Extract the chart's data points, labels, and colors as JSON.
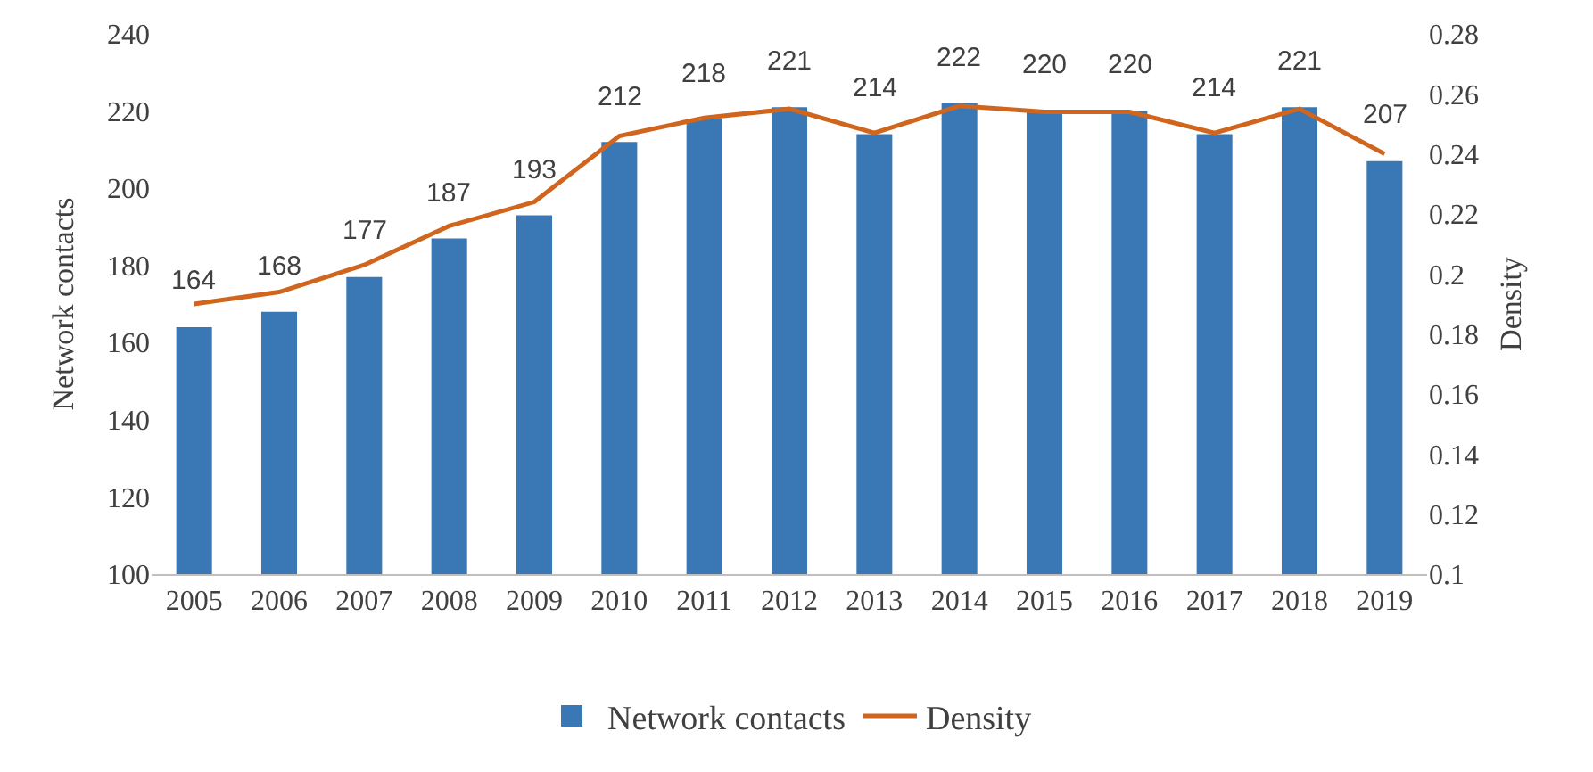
{
  "chart_data": {
    "type": "bar",
    "ylabel": "Network contacts",
    "y2label": "Density",
    "categories": [
      "2005",
      "2006",
      "2007",
      "2008",
      "2009",
      "2010",
      "2011",
      "2012",
      "2013",
      "2014",
      "2015",
      "2016",
      "2017",
      "2018",
      "2019"
    ],
    "series": [
      {
        "name": "Network contacts",
        "color": "#3a78b5",
        "values": [
          164,
          168,
          177,
          187,
          193,
          212,
          218,
          221,
          214,
          222,
          220,
          220,
          214,
          221,
          207
        ],
        "value_labels": [
          "164",
          "168",
          "177",
          "187",
          "193",
          "212",
          "218",
          "221",
          "214",
          "222",
          "220",
          "220",
          "214",
          "221",
          "207"
        ]
      },
      {
        "name": "Density",
        "type": "line",
        "axis": "y2",
        "color": "#d0661e",
        "values": [
          0.19,
          0.194,
          0.203,
          0.216,
          0.224,
          0.246,
          0.252,
          0.255,
          0.247,
          0.256,
          0.254,
          0.254,
          0.247,
          0.255,
          0.24
        ]
      }
    ],
    "ylim": [
      100,
      240
    ],
    "yticks": [
      100,
      120,
      140,
      160,
      180,
      200,
      220,
      240
    ],
    "y2lim": [
      0.1,
      0.28
    ],
    "y2ticks": [
      0.1,
      0.12,
      0.14,
      0.16,
      0.18,
      0.2,
      0.22,
      0.24,
      0.26,
      0.28
    ],
    "grid": false,
    "legend": "bottom",
    "marker": "none",
    "line_style": "solid"
  }
}
